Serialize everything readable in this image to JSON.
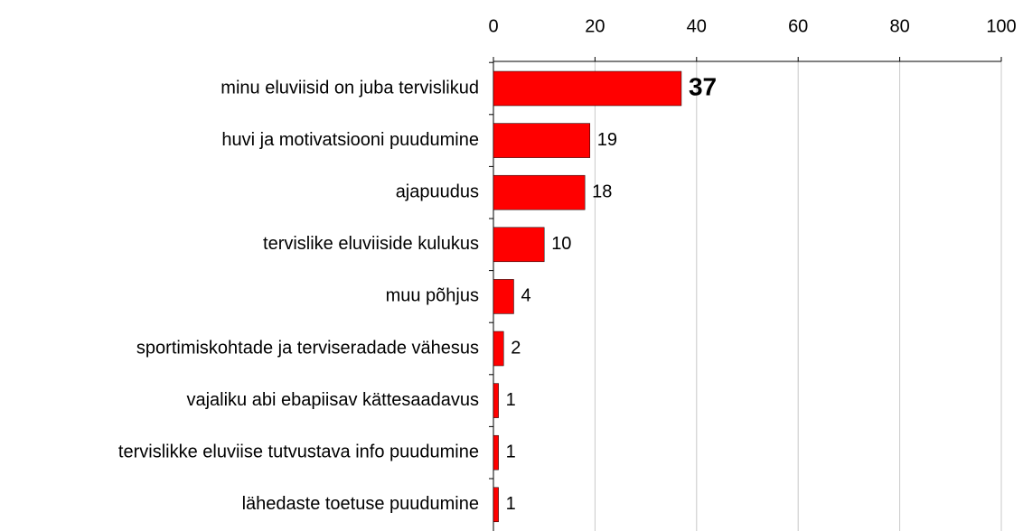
{
  "chart_data": {
    "type": "bar",
    "orientation": "horizontal",
    "categories": [
      "minu eluviisid on juba tervislikud",
      "huvi ja motivatsiooni puudumine",
      "ajapuudus",
      "tervislike eluviiside kulukus",
      "muu põhjus",
      "sportimiskohtade ja terviseradade vähesus",
      "vajaliku abi ebapiisav kättesaadavus",
      "tervislikke eluviise tutvustava info puudumine",
      "lähedaste toetuse puudumine"
    ],
    "values": [
      37,
      19,
      18,
      10,
      4,
      2,
      1,
      1,
      1
    ],
    "color": "#ff0000",
    "xlim": [
      0,
      100
    ],
    "xticks": [
      0,
      20,
      40,
      60,
      80,
      100
    ],
    "grid": true,
    "x_axis_position": "top"
  }
}
